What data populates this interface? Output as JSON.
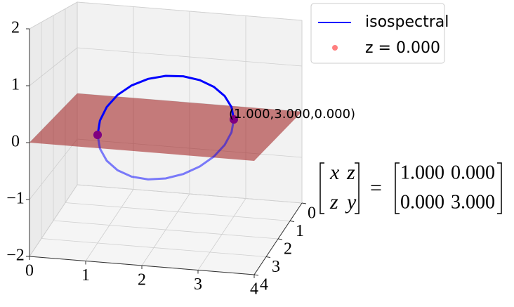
{
  "chart_data": {
    "type": "line3d",
    "series": [
      {
        "name": "isospectral",
        "color": "#0000ff",
        "x": [
          3,
          2.966,
          2.866,
          2.707,
          2.5,
          2.259,
          2,
          1.741,
          1.5,
          1.293,
          1.134,
          1.034,
          1,
          1.034,
          1.134,
          1.293,
          1.5,
          1.741,
          2,
          2.259,
          2.5,
          2.707,
          2.866,
          2.966,
          3
        ],
        "y": [
          1,
          1.034,
          1.134,
          1.293,
          1.5,
          1.741,
          2,
          2.259,
          2.5,
          2.707,
          2.866,
          2.966,
          3,
          2.966,
          2.866,
          2.707,
          2.5,
          2.259,
          2,
          1.741,
          1.5,
          1.293,
          1.134,
          1.034,
          1
        ],
        "z": [
          0,
          0.259,
          0.5,
          0.707,
          0.866,
          0.966,
          1,
          0.966,
          0.866,
          0.707,
          0.5,
          0.259,
          0,
          -0.259,
          -0.5,
          -0.707,
          -0.866,
          -0.966,
          -1,
          -0.966,
          -0.866,
          -0.707,
          -0.5,
          -0.259,
          0
        ]
      },
      {
        "name": "z = 0.000",
        "color": "#ff0000",
        "alpha": 0.5,
        "x": [
          1,
          3
        ],
        "y": [
          3,
          1
        ],
        "z": [
          0,
          0
        ]
      }
    ],
    "plane": {
      "z": 0,
      "color": "#a52a2a"
    },
    "annotation": "(1.000,3.000,0.000)",
    "matrix": {
      "lhs": [
        [
          "x",
          "z"
        ],
        [
          "z",
          "y"
        ]
      ],
      "rhs": [
        [
          "1.000",
          "0.000"
        ],
        [
          "0.000",
          "3.000"
        ]
      ]
    },
    "xlim": [
      0,
      4
    ],
    "xticks": [
      0,
      1,
      2,
      3,
      4
    ],
    "ylim": [
      0,
      4
    ],
    "yticks": [
      0,
      1,
      2,
      3,
      4
    ],
    "zlim": [
      -2,
      2
    ],
    "zticks": [
      {
        "value": -2,
        "label": "−2"
      },
      {
        "value": -1,
        "label": "−1"
      },
      0,
      1,
      2
    ],
    "grid": true
  }
}
